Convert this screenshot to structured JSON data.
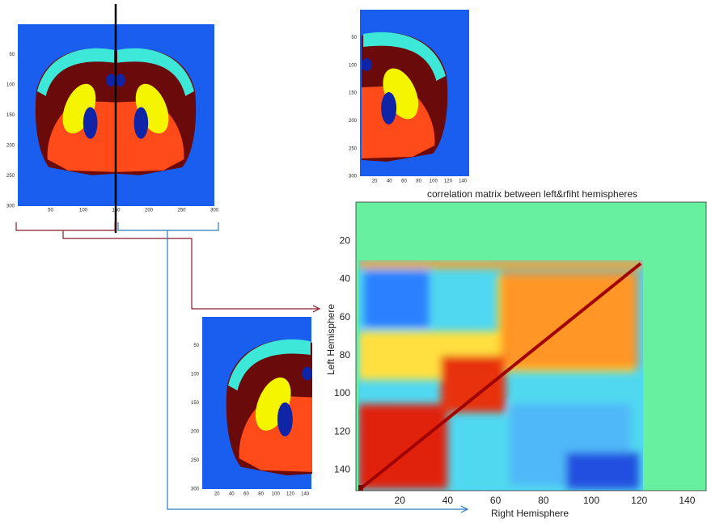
{
  "full_section": {
    "xticks": [
      50,
      100,
      150,
      200,
      250,
      300
    ],
    "yticks": [
      50,
      100,
      150,
      200,
      250,
      300
    ]
  },
  "right_half": {
    "xticks": [
      20,
      40,
      60,
      80,
      100,
      120,
      140
    ],
    "yticks": [
      50,
      100,
      150,
      200,
      250,
      300
    ]
  },
  "left_half": {
    "xticks": [
      20,
      40,
      60,
      80,
      100,
      120,
      140
    ],
    "yticks": [
      50,
      100,
      150,
      200,
      250,
      300
    ]
  },
  "correlation_matrix": {
    "title": "correlation matrix between left&rfiht hemispheres",
    "xlabel": "Right Hemisphere",
    "ylabel": "Left Hemisphere",
    "xticks": [
      20,
      40,
      60,
      80,
      100,
      120,
      140
    ],
    "yticks": [
      20,
      40,
      60,
      80,
      100,
      120,
      140
    ]
  }
}
